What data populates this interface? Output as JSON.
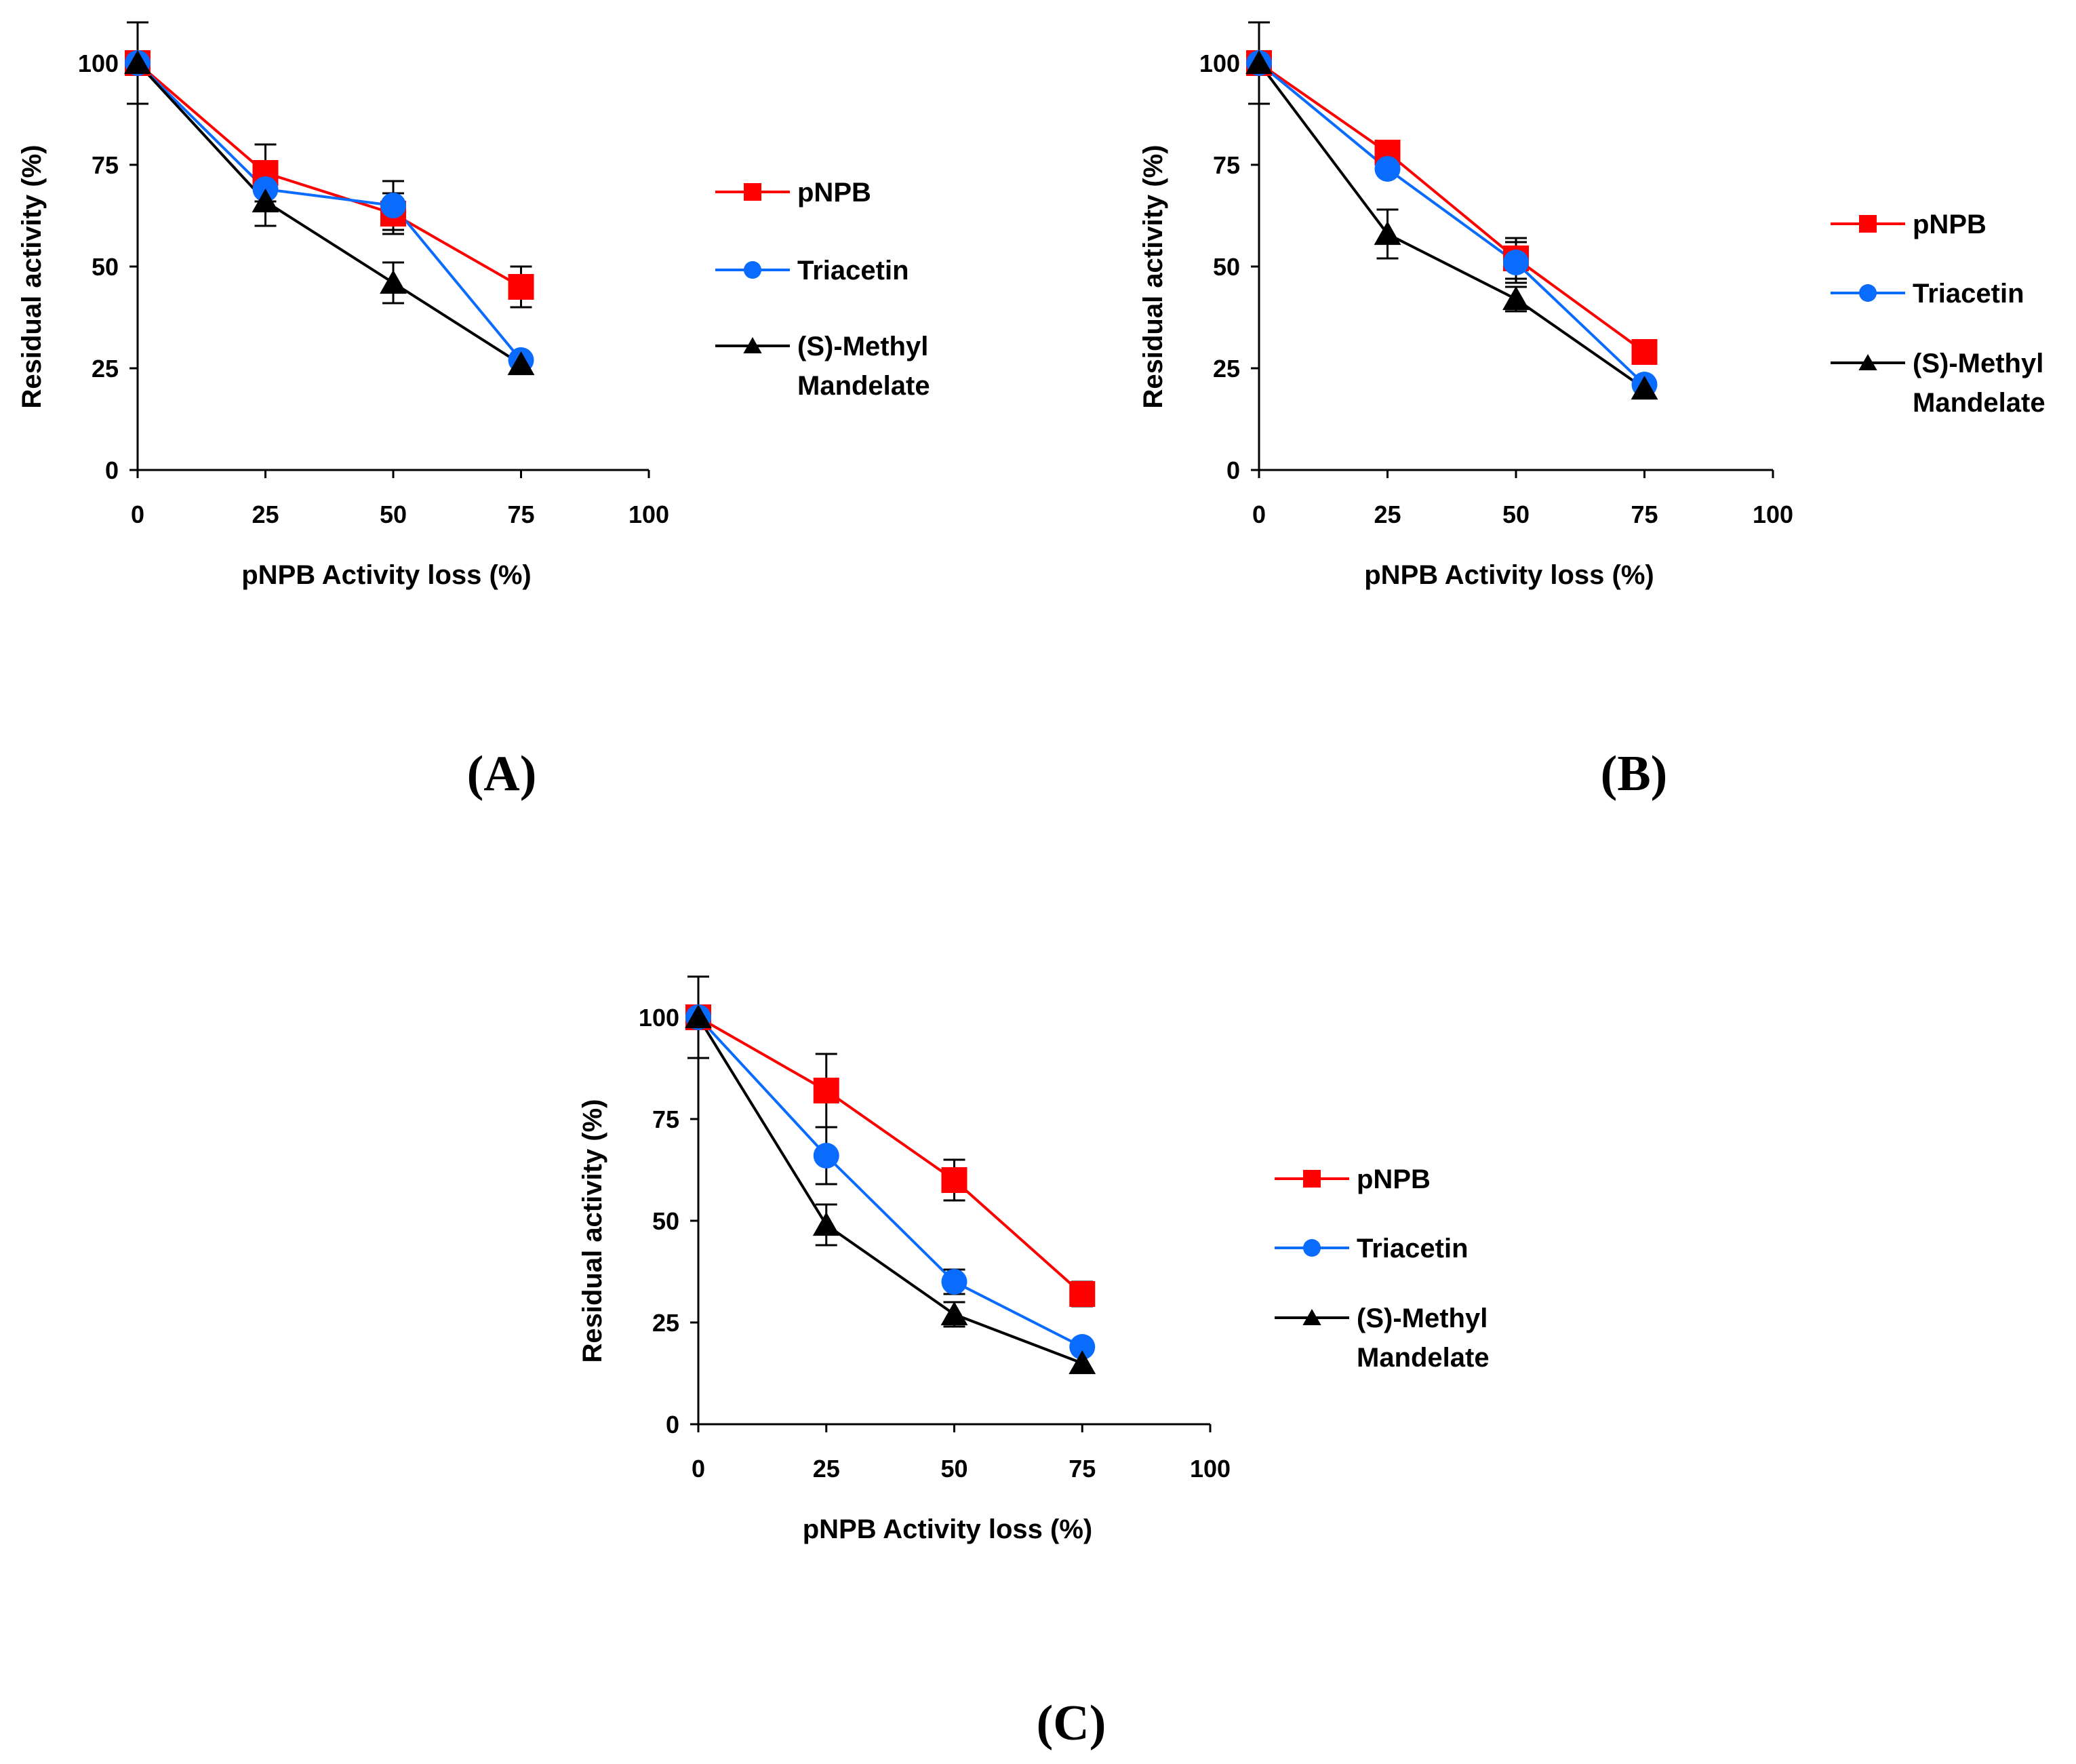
{
  "chart_data": [
    {
      "type": "line",
      "panel_label": "(A)",
      "xlabel": "pNPB Activity loss (%)",
      "ylabel": "Residual activity (%)",
      "xlim": [
        0,
        100
      ],
      "ylim": [
        0,
        110
      ],
      "x_ticks": [
        0,
        25,
        50,
        75,
        100
      ],
      "y_ticks": [
        0,
        25,
        50,
        75,
        100
      ],
      "x_tick_labels": [
        "0",
        "25",
        "50",
        "75",
        "100"
      ],
      "y_tick_labels": [
        "0",
        "25",
        "50",
        "75",
        "100"
      ],
      "legend_position": "right",
      "x": [
        0,
        25,
        50,
        75
      ],
      "series": [
        {
          "name": "pNPB",
          "color": "#ff0000",
          "marker": "square",
          "values": [
            100,
            73,
            63,
            45
          ],
          "errors": [
            0,
            7,
            5,
            5
          ]
        },
        {
          "name": "Triacetin",
          "color": "#0a6cff",
          "marker": "circle",
          "values": [
            100,
            69,
            65,
            27
          ],
          "errors": [
            0,
            0,
            6,
            0
          ]
        },
        {
          "name": "(S)-Methyl Mandelate",
          "color": "#000000",
          "marker": "triangle",
          "values": [
            100,
            66,
            46,
            26
          ],
          "errors": [
            10,
            6,
            5,
            0
          ]
        }
      ],
      "legend_labels": [
        [
          "pNPB"
        ],
        [
          "Triacetin"
        ],
        [
          "(S)-Methyl",
          "Mandelate"
        ]
      ]
    },
    {
      "type": "line",
      "panel_label": "(B)",
      "xlabel": "pNPB Activity loss (%)",
      "ylabel": "Residual activity (%)",
      "xlim": [
        0,
        100
      ],
      "ylim": [
        0,
        110
      ],
      "x_ticks": [
        0,
        25,
        50,
        75,
        100
      ],
      "y_ticks": [
        0,
        25,
        50,
        75,
        100
      ],
      "x_tick_labels": [
        "0",
        "25",
        "50",
        "75",
        "100"
      ],
      "y_tick_labels": [
        "0",
        "25",
        "50",
        "75",
        "100"
      ],
      "legend_position": "right",
      "x": [
        0,
        25,
        50,
        75
      ],
      "series": [
        {
          "name": "pNPB",
          "color": "#ff0000",
          "marker": "square",
          "values": [
            100,
            78,
            52,
            29
          ],
          "errors": [
            0,
            0,
            5,
            0
          ]
        },
        {
          "name": "Triacetin",
          "color": "#0a6cff",
          "marker": "circle",
          "values": [
            100,
            74,
            51,
            21
          ],
          "errors": [
            0,
            0,
            5,
            0
          ]
        },
        {
          "name": "(S)-Methyl Mandelate",
          "color": "#000000",
          "marker": "triangle",
          "values": [
            100,
            58,
            42,
            20
          ],
          "errors": [
            10,
            6,
            3,
            0
          ]
        }
      ],
      "legend_labels": [
        [
          "pNPB"
        ],
        [
          "Triacetin"
        ],
        [
          "(S)-Methyl",
          "Mandelate"
        ]
      ]
    },
    {
      "type": "line",
      "panel_label": "(C)",
      "xlabel": "pNPB Activity loss (%)",
      "ylabel": "Residual activity (%)",
      "xlim": [
        0,
        100
      ],
      "ylim": [
        0,
        110
      ],
      "x_ticks": [
        0,
        25,
        50,
        75,
        100
      ],
      "y_ticks": [
        0,
        25,
        50,
        75,
        100
      ],
      "x_tick_labels": [
        "0",
        "25",
        "50",
        "75",
        "100"
      ],
      "y_tick_labels": [
        "0",
        "25",
        "50",
        "75",
        "100"
      ],
      "legend_position": "right",
      "x": [
        0,
        25,
        50,
        75
      ],
      "series": [
        {
          "name": "pNPB",
          "color": "#ff0000",
          "marker": "square",
          "values": [
            100,
            82,
            60,
            32
          ],
          "errors": [
            0,
            9,
            5,
            3
          ]
        },
        {
          "name": "Triacetin",
          "color": "#0a6cff",
          "marker": "circle",
          "values": [
            100,
            66,
            35,
            19
          ],
          "errors": [
            0,
            7,
            3,
            0
          ]
        },
        {
          "name": "(S)-Methyl Mandelate",
          "color": "#000000",
          "marker": "triangle",
          "values": [
            100,
            49,
            27,
            15
          ],
          "errors": [
            10,
            5,
            3,
            0
          ]
        }
      ],
      "legend_labels": [
        [
          "pNPB"
        ],
        [
          "Triacetin"
        ],
        [
          "(S)-Methyl",
          "Mandelate"
        ]
      ]
    }
  ]
}
